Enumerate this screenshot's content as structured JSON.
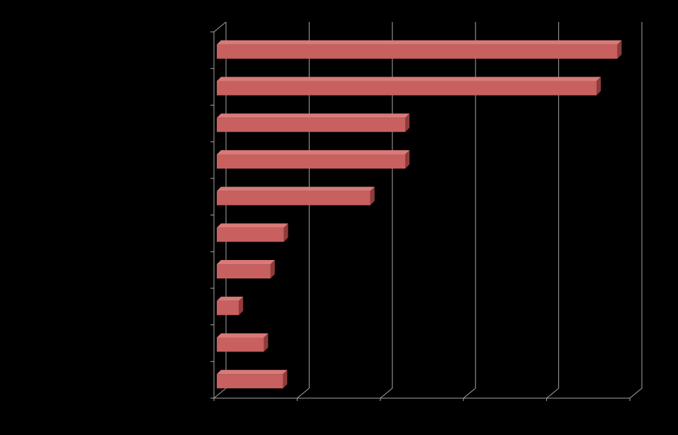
{
  "chart_data": {
    "type": "bar",
    "orientation": "horizontal",
    "style": "3d",
    "categories": [
      "",
      "",
      "",
      "",
      "",
      "",
      "",
      "",
      "",
      ""
    ],
    "values": [
      4.85,
      4.6,
      2.3,
      2.3,
      1.88,
      0.84,
      0.68,
      0.3,
      0.6,
      0.83
    ],
    "xlim": [
      0,
      5
    ],
    "x_gridlines": [
      0,
      1,
      2,
      3,
      4,
      5
    ],
    "x_tick_labels": [],
    "grid": true,
    "legend": "none",
    "title": "",
    "xlabel": "",
    "ylabel": "",
    "colors": {
      "background": "#000000",
      "bar_front": "#c86060",
      "bar_top": "#d87a78",
      "bar_side": "#8e3c3b",
      "grid": "#a6a6a6"
    }
  }
}
